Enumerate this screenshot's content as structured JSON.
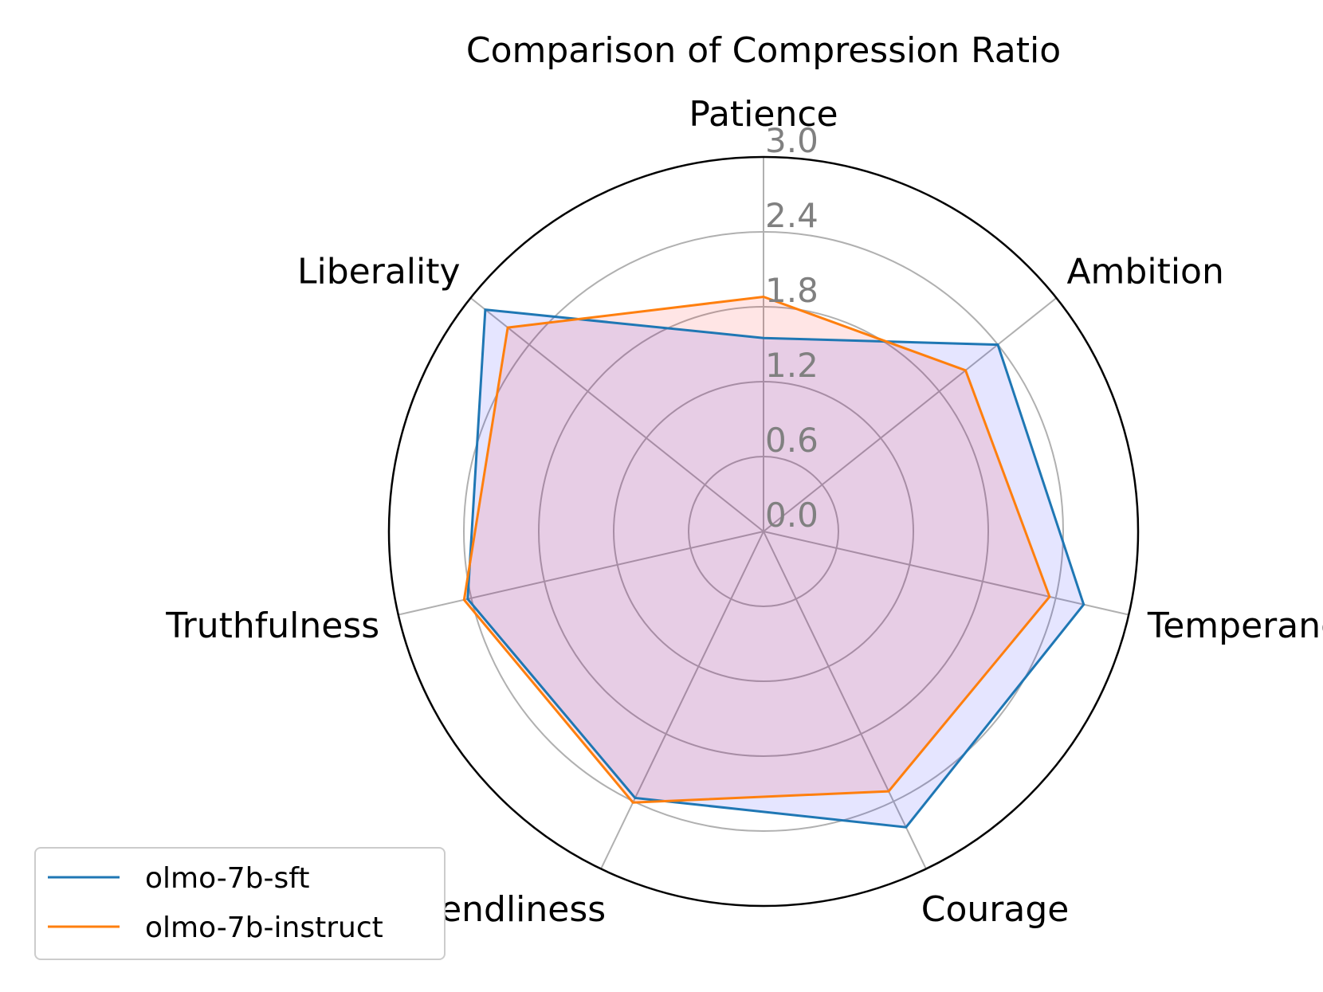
{
  "chart_data": {
    "type": "radar",
    "title": "Comparison of Compression Ratio",
    "categories": [
      "Patience",
      "Ambition",
      "Temperance",
      "Courage",
      "Friendliness",
      "Truthfulness",
      "Liberality"
    ],
    "series": [
      {
        "name": "olmo-7b-sft",
        "values": [
          1.55,
          2.4,
          2.63,
          2.63,
          2.37,
          2.43,
          2.85
        ],
        "color": "#1f77b4",
        "fill": "#0000ff"
      },
      {
        "name": "olmo-7b-instruct",
        "values": [
          1.88,
          2.07,
          2.35,
          2.31,
          2.41,
          2.46,
          2.62
        ],
        "color": "#ff7f0e",
        "fill": "#ff0000"
      }
    ],
    "rlim": [
      0,
      3.0
    ],
    "rticks": [
      "0.0",
      "0.6",
      "1.2",
      "1.8",
      "2.4",
      "3.0"
    ],
    "grid": true,
    "legend_position": "lower-left"
  }
}
